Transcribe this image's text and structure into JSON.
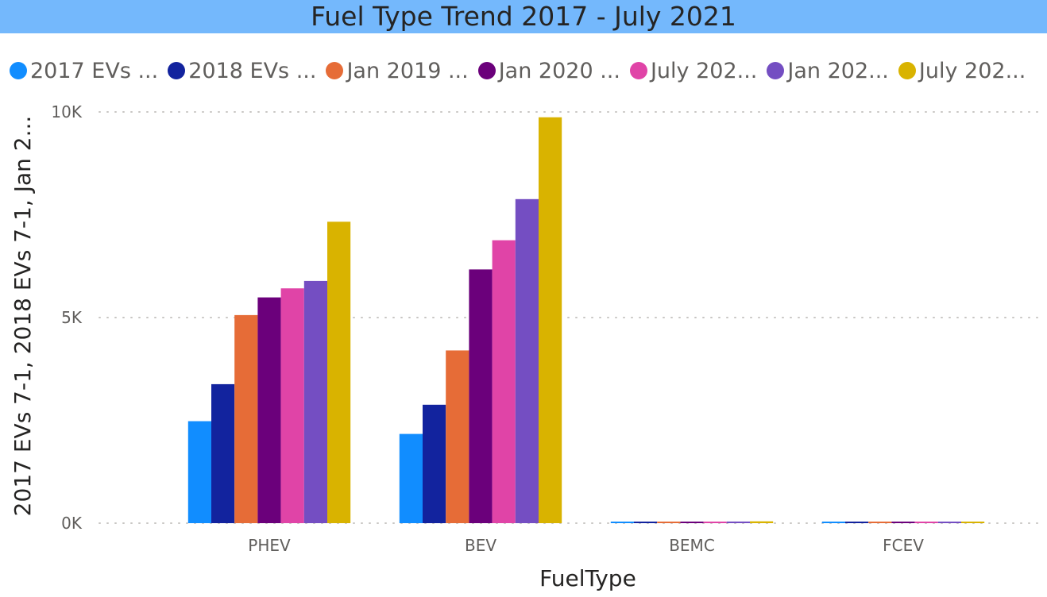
{
  "title": "Fuel Type Trend 2017 - July 2021",
  "legend": [
    {
      "label": "2017 EVs ...",
      "color": "#118dff"
    },
    {
      "label": "2018 EVs ...",
      "color": "#12239e"
    },
    {
      "label": "Jan 2019 ...",
      "color": "#e66c37"
    },
    {
      "label": "Jan 2020 ...",
      "color": "#6b007b"
    },
    {
      "label": "July 202...",
      "color": "#e044a7"
    },
    {
      "label": "Jan 202...",
      "color": "#744ec2"
    },
    {
      "label": "July 202...",
      "color": "#d9b300"
    }
  ],
  "chart_data": {
    "type": "bar",
    "title": "Fuel Type Trend 2017 - July 2021",
    "xlabel": "FuelType",
    "ylabel": "2017 EVs 7-1, 2018 EVs 7-1, Jan 2...",
    "ylim": [
      0,
      10000
    ],
    "yticks": [
      {
        "value": 0,
        "label": "0K"
      },
      {
        "value": 5000,
        "label": "5K"
      },
      {
        "value": 10000,
        "label": "10K"
      }
    ],
    "grid": true,
    "legend_position": "top-left",
    "categories": [
      "PHEV",
      "BEV",
      "BEMC",
      "FCEV"
    ],
    "series": [
      {
        "name": "2017 EVs ...",
        "color": "#118dff",
        "values": [
          2480,
          2170,
          10,
          5
        ]
      },
      {
        "name": "2018 EVs ...",
        "color": "#12239e",
        "values": [
          3380,
          2880,
          15,
          8
        ]
      },
      {
        "name": "Jan 2019 ...",
        "color": "#e66c37",
        "values": [
          5060,
          4200,
          30,
          15
        ]
      },
      {
        "name": "Jan 2020 ...",
        "color": "#6b007b",
        "values": [
          5490,
          6170,
          35,
          20
        ]
      },
      {
        "name": "July 202...",
        "color": "#e044a7",
        "values": [
          5710,
          6880,
          35,
          20
        ]
      },
      {
        "name": "Jan 202...",
        "color": "#744ec2",
        "values": [
          5890,
          7880,
          40,
          25
        ]
      },
      {
        "name": "July 202...",
        "color": "#d9b300",
        "values": [
          7330,
          9870,
          45,
          30
        ]
      }
    ]
  }
}
